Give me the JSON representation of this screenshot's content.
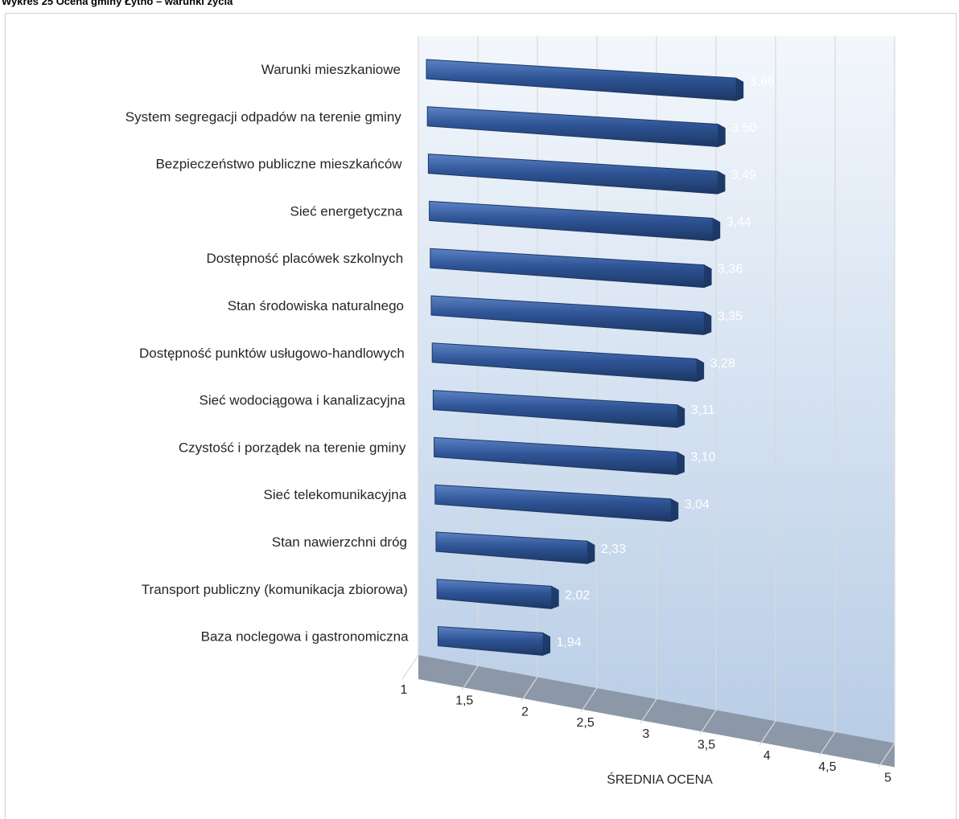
{
  "caption": "Wykres 25 Ocena gminy Łytno – warunki życia",
  "chart_data": {
    "type": "bar",
    "orientation": "horizontal",
    "style": "3d",
    "categories": [
      "Warunki mieszkaniowe",
      "System segregacji odpadów na terenie gminy",
      "Bezpieczeństwo publiczne mieszkańców",
      "Sieć energetyczna",
      "Dostępność placówek szkolnych",
      "Stan środowiska naturalnego",
      "Dostępność punktów usługowo-handlowych",
      "Sieć wodociągowa i kanalizacyjna",
      "Czystość i porządek na terenie gminy",
      "Sieć telekomunikacyjna",
      "Stan nawierzchni dróg",
      "Transport publiczny (komunikacja zbiorowa)",
      "Baza noclegowa i gastronomiczna"
    ],
    "values": [
      3.66,
      3.5,
      3.49,
      3.44,
      3.36,
      3.35,
      3.28,
      3.11,
      3.1,
      3.04,
      2.33,
      2.02,
      1.94
    ],
    "data_labels": [
      "3,66",
      "3,50",
      "3,49",
      "3,44",
      "3,36",
      "3,35",
      "3,28",
      "3,11",
      "3,10",
      "3,04",
      "2,33",
      "2,02",
      "1,94"
    ],
    "xlim": [
      1,
      5
    ],
    "ticks": [
      1,
      1.5,
      2,
      2.5,
      3,
      3.5,
      4,
      4.5,
      5
    ],
    "tick_labels": [
      "1",
      "1,5",
      "2",
      "2,5",
      "3",
      "3,5",
      "4",
      "4,5",
      "5"
    ],
    "xlabel": "ŚREDNIA OCENA",
    "grid": true,
    "legend": "none",
    "colors": {
      "bar": "#2f5597",
      "bar_top": "#5b82c4",
      "bar_shadow": "#1c3764",
      "wall_light": "#f3f7fc",
      "wall_dark": "#b8cde6",
      "floor": "#8c98a8",
      "data_label": "#ffffff"
    }
  }
}
